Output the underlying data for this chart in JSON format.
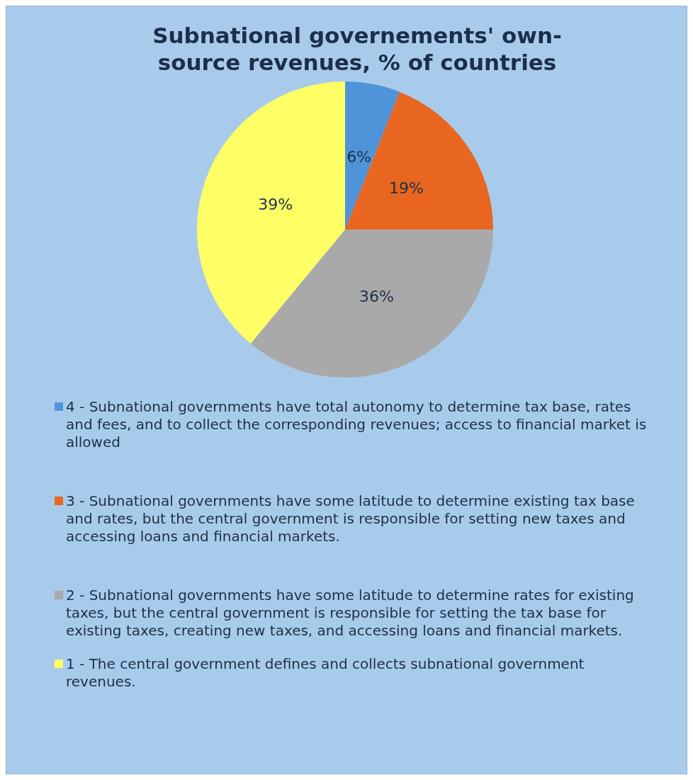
{
  "chart_data": {
    "type": "pie",
    "title": "Subnational governements' own-source revenues, % of countries",
    "categories": [
      "4 - Subnational governments have total autonomy to determine tax base, rates and fees, and to collect the corresponding revenues; access to financial market is allowed",
      "3 - Subnational governments have some latitude to determine existing tax base and rates, but the central government is responsible for setting new taxes and accessing loans and financial markets.",
      "2 - Subnational governments have some latitude to determine rates for existing taxes, but the central government is responsible for setting the tax base for existing taxes, creating new taxes, and accessing loans and financial markets.",
      "1 - The central government defines and collects subnational government revenues."
    ],
    "values": [
      6,
      19,
      36,
      39
    ],
    "value_labels": [
      "6%",
      "19%",
      "36%",
      "39%"
    ],
    "colors": [
      "#4f94d9",
      "#e8661f",
      "#a9a9a9",
      "#ffff66"
    ],
    "legend": "bottom"
  }
}
